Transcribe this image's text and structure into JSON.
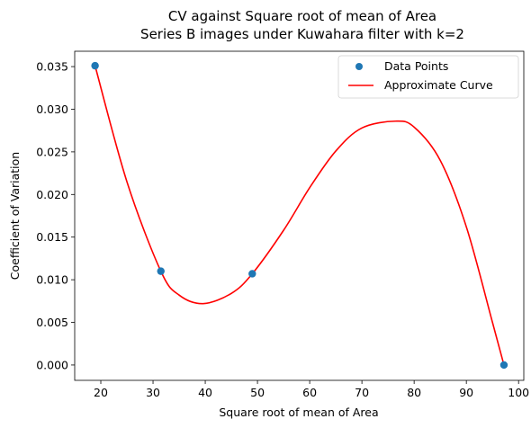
{
  "chart_data": {
    "type": "scatter",
    "title_line1": "CV against Square root of mean of Area",
    "title_line2": "Series B images under Kuwahara filter with k=2",
    "xlabel": "Square root of mean of Area",
    "ylabel": "Coefficient of Variation",
    "xlim": [
      15,
      101
    ],
    "ylim": [
      -0.0018,
      0.0368
    ],
    "xticks": [
      20,
      30,
      40,
      50,
      60,
      70,
      80,
      90,
      100
    ],
    "yticks": [
      0.0,
      0.005,
      0.01,
      0.015,
      0.02,
      0.025,
      0.03,
      0.035
    ],
    "xtick_labels": [
      "20",
      "30",
      "40",
      "50",
      "60",
      "70",
      "80",
      "90",
      "100"
    ],
    "ytick_labels": [
      "0.000",
      "0.005",
      "0.010",
      "0.015",
      "0.020",
      "0.025",
      "0.030",
      "0.035"
    ],
    "grid": false,
    "legend_position": "top-right",
    "series": [
      {
        "name": "Data Points",
        "kind": "scatter",
        "color": "#1f77b4",
        "x": [
          18.9,
          31.5,
          49.0,
          97.2
        ],
        "y": [
          0.0351,
          0.011,
          0.0107,
          0.0
        ]
      },
      {
        "name": "Approximate Curve",
        "kind": "line",
        "color": "#ff0000",
        "x": [
          18.9,
          25,
          31.5,
          35,
          39.6,
          45,
          49.0,
          55,
          60,
          65,
          70,
          76.4,
          80,
          85,
          90,
          95,
          97.2
        ],
        "y": [
          0.0351,
          0.0215,
          0.011,
          0.0082,
          0.0072,
          0.0084,
          0.0107,
          0.0158,
          0.0208,
          0.0251,
          0.0278,
          0.0286,
          0.0279,
          0.024,
          0.0162,
          0.005,
          0.0
        ]
      }
    ]
  }
}
